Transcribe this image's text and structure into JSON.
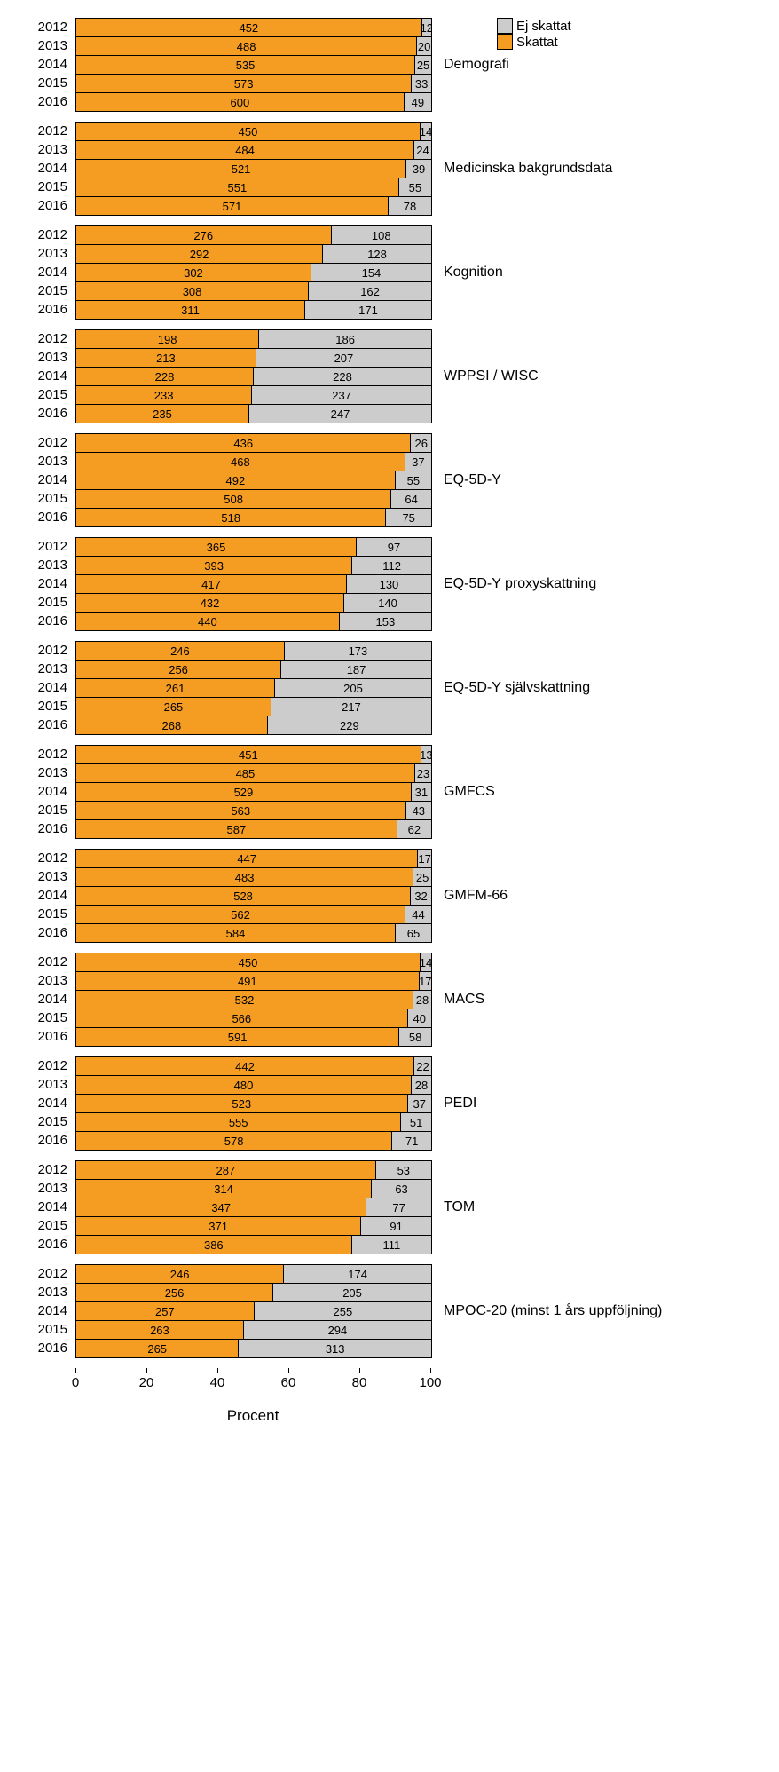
{
  "legend": {
    "items": [
      {
        "label": "Ej skattat",
        "color": "#cccccc"
      },
      {
        "label": "Skattat",
        "color": "#f59c22"
      }
    ]
  },
  "axis": {
    "title": "Procent",
    "ticks": [
      0,
      20,
      40,
      60,
      80,
      100
    ],
    "min": 0,
    "max": 100
  },
  "colors": {
    "skattat": "#f59c22",
    "ej_skattat": "#cccccc",
    "border": "#000000",
    "text": "#000000"
  },
  "fontsize": {
    "year": 15,
    "value": 13,
    "group": 16,
    "axis": 15,
    "title": 17
  },
  "groups": [
    {
      "label": "Demografi",
      "rows": [
        {
          "year": "2012",
          "skattat": 452,
          "ej": 12
        },
        {
          "year": "2013",
          "skattat": 488,
          "ej": 20
        },
        {
          "year": "2014",
          "skattat": 535,
          "ej": 25
        },
        {
          "year": "2015",
          "skattat": 573,
          "ej": 33
        },
        {
          "year": "2016",
          "skattat": 600,
          "ej": 49
        }
      ]
    },
    {
      "label": "Medicinska bakgrundsdata",
      "rows": [
        {
          "year": "2012",
          "skattat": 450,
          "ej": 14
        },
        {
          "year": "2013",
          "skattat": 484,
          "ej": 24
        },
        {
          "year": "2014",
          "skattat": 521,
          "ej": 39
        },
        {
          "year": "2015",
          "skattat": 551,
          "ej": 55
        },
        {
          "year": "2016",
          "skattat": 571,
          "ej": 78
        }
      ]
    },
    {
      "label": "Kognition",
      "rows": [
        {
          "year": "2012",
          "skattat": 276,
          "ej": 108
        },
        {
          "year": "2013",
          "skattat": 292,
          "ej": 128
        },
        {
          "year": "2014",
          "skattat": 302,
          "ej": 154
        },
        {
          "year": "2015",
          "skattat": 308,
          "ej": 162
        },
        {
          "year": "2016",
          "skattat": 311,
          "ej": 171
        }
      ]
    },
    {
      "label": "WPPSI / WISC",
      "rows": [
        {
          "year": "2012",
          "skattat": 198,
          "ej": 186
        },
        {
          "year": "2013",
          "skattat": 213,
          "ej": 207
        },
        {
          "year": "2014",
          "skattat": 228,
          "ej": 228
        },
        {
          "year": "2015",
          "skattat": 233,
          "ej": 237
        },
        {
          "year": "2016",
          "skattat": 235,
          "ej": 247
        }
      ]
    },
    {
      "label": "EQ-5D-Y",
      "rows": [
        {
          "year": "2012",
          "skattat": 436,
          "ej": 26
        },
        {
          "year": "2013",
          "skattat": 468,
          "ej": 37
        },
        {
          "year": "2014",
          "skattat": 492,
          "ej": 55
        },
        {
          "year": "2015",
          "skattat": 508,
          "ej": 64
        },
        {
          "year": "2016",
          "skattat": 518,
          "ej": 75
        }
      ]
    },
    {
      "label": "EQ-5D-Y proxyskattning",
      "rows": [
        {
          "year": "2012",
          "skattat": 365,
          "ej": 97
        },
        {
          "year": "2013",
          "skattat": 393,
          "ej": 112
        },
        {
          "year": "2014",
          "skattat": 417,
          "ej": 130
        },
        {
          "year": "2015",
          "skattat": 432,
          "ej": 140
        },
        {
          "year": "2016",
          "skattat": 440,
          "ej": 153
        }
      ]
    },
    {
      "label": "EQ-5D-Y självskattning",
      "rows": [
        {
          "year": "2012",
          "skattat": 246,
          "ej": 173
        },
        {
          "year": "2013",
          "skattat": 256,
          "ej": 187
        },
        {
          "year": "2014",
          "skattat": 261,
          "ej": 205
        },
        {
          "year": "2015",
          "skattat": 265,
          "ej": 217
        },
        {
          "year": "2016",
          "skattat": 268,
          "ej": 229
        }
      ]
    },
    {
      "label": "GMFCS",
      "rows": [
        {
          "year": "2012",
          "skattat": 451,
          "ej": 13
        },
        {
          "year": "2013",
          "skattat": 485,
          "ej": 23
        },
        {
          "year": "2014",
          "skattat": 529,
          "ej": 31
        },
        {
          "year": "2015",
          "skattat": 563,
          "ej": 43
        },
        {
          "year": "2016",
          "skattat": 587,
          "ej": 62
        }
      ]
    },
    {
      "label": "GMFM-66",
      "rows": [
        {
          "year": "2012",
          "skattat": 447,
          "ej": 17
        },
        {
          "year": "2013",
          "skattat": 483,
          "ej": 25
        },
        {
          "year": "2014",
          "skattat": 528,
          "ej": 32
        },
        {
          "year": "2015",
          "skattat": 562,
          "ej": 44
        },
        {
          "year": "2016",
          "skattat": 584,
          "ej": 65
        }
      ]
    },
    {
      "label": "MACS",
      "rows": [
        {
          "year": "2012",
          "skattat": 450,
          "ej": 14
        },
        {
          "year": "2013",
          "skattat": 491,
          "ej": 17
        },
        {
          "year": "2014",
          "skattat": 532,
          "ej": 28
        },
        {
          "year": "2015",
          "skattat": 566,
          "ej": 40
        },
        {
          "year": "2016",
          "skattat": 591,
          "ej": 58
        }
      ]
    },
    {
      "label": "PEDI",
      "rows": [
        {
          "year": "2012",
          "skattat": 442,
          "ej": 22
        },
        {
          "year": "2013",
          "skattat": 480,
          "ej": 28
        },
        {
          "year": "2014",
          "skattat": 523,
          "ej": 37
        },
        {
          "year": "2015",
          "skattat": 555,
          "ej": 51
        },
        {
          "year": "2016",
          "skattat": 578,
          "ej": 71
        }
      ]
    },
    {
      "label": "TOM",
      "rows": [
        {
          "year": "2012",
          "skattat": 287,
          "ej": 53
        },
        {
          "year": "2013",
          "skattat": 314,
          "ej": 63
        },
        {
          "year": "2014",
          "skattat": 347,
          "ej": 77
        },
        {
          "year": "2015",
          "skattat": 371,
          "ej": 91
        },
        {
          "year": "2016",
          "skattat": 386,
          "ej": 111
        }
      ]
    },
    {
      "label": "MPOC-20 (minst 1 års uppföljning)",
      "rows": [
        {
          "year": "2012",
          "skattat": 246,
          "ej": 174
        },
        {
          "year": "2013",
          "skattat": 256,
          "ej": 205
        },
        {
          "year": "2014",
          "skattat": 257,
          "ej": 255
        },
        {
          "year": "2015",
          "skattat": 263,
          "ej": 294
        },
        {
          "year": "2016",
          "skattat": 265,
          "ej": 313
        }
      ]
    }
  ]
}
